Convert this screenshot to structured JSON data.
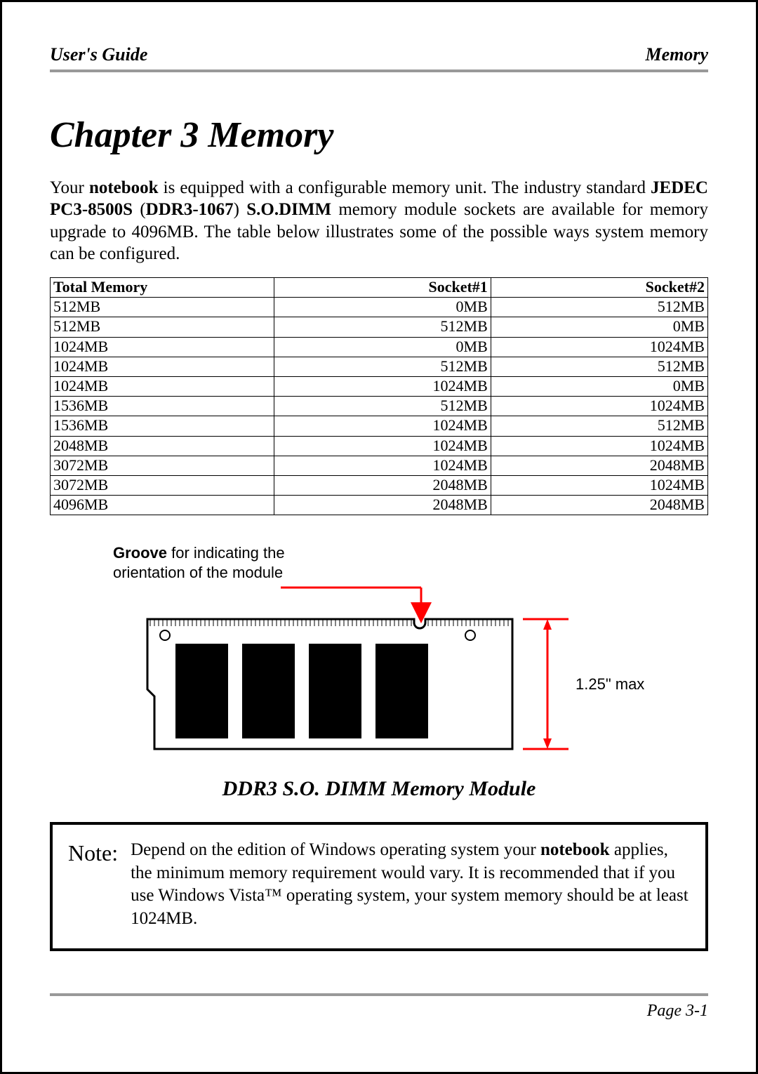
{
  "header": {
    "left": "User's Guide",
    "right": "Memory"
  },
  "chapter_title": "Chapter 3 Memory",
  "intro": {
    "p1_a": "Your ",
    "p1_b": "notebook",
    "p1_c": " is equipped with a configurable memory unit. The industry standard ",
    "p1_d": "JEDEC PC3-8500S",
    "p1_e": " (",
    "p1_f": "DDR3-1067",
    "p1_g": ") ",
    "p1_h": "S.O.DIMM",
    "p1_i": " memory module sockets are available for memory upgrade to 4096MB. The table below illustrates some of the possible ways system memory can be configured."
  },
  "table": {
    "columns": [
      "Total Memory",
      "Socket#1",
      "Socket#2"
    ],
    "rows": [
      [
        "512MB",
        "0MB",
        "512MB"
      ],
      [
        "512MB",
        "512MB",
        "0MB"
      ],
      [
        "1024MB",
        "0MB",
        "1024MB"
      ],
      [
        "1024MB",
        "512MB",
        "512MB"
      ],
      [
        "1024MB",
        "1024MB",
        "0MB"
      ],
      [
        "1536MB",
        "512MB",
        "1024MB"
      ],
      [
        "1536MB",
        "1024MB",
        "512MB"
      ],
      [
        "2048MB",
        "1024MB",
        "1024MB"
      ],
      [
        "3072MB",
        "1024MB",
        "2048MB"
      ],
      [
        "3072MB",
        "2048MB",
        "1024MB"
      ],
      [
        "4096MB",
        "2048MB",
        "2048MB"
      ]
    ],
    "header_bg": "#ffffff",
    "border_color": "#000000",
    "font_size": 22
  },
  "diagram": {
    "groove_label_bold": "Groove",
    "groove_label_rest": " for indicating the",
    "groove_label_line2": "orientation of the module",
    "height_label": "1.25\" max",
    "module_outline": "#000000",
    "chip_fill": "#000000",
    "arrow_color": "#ff0000",
    "bg": "#ffffff"
  },
  "figure_title": "DDR3 S.O. DIMM Memory Module",
  "note": {
    "label": "Note:",
    "t1": "Depend on the edition of Windows operating system your ",
    "t2": "notebook",
    "t3": " applies, the minimum memory requirement would vary. It is recommended that if you use Windows Vista™ operating system, your system memory should be at least 1024MB."
  },
  "footer": {
    "page": "Page 3-1"
  },
  "colors": {
    "rule": "#999999",
    "text": "#000000"
  }
}
